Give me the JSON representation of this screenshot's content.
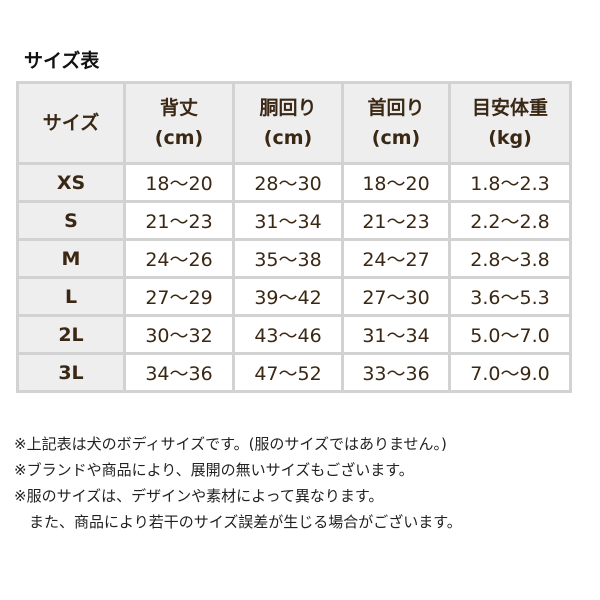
{
  "title": "サイズ表",
  "table": {
    "headers": [
      "サイズ",
      [
        "背丈",
        "(cm)"
      ],
      [
        "胴回り",
        "(cm)"
      ],
      [
        "首回り",
        "(cm)"
      ],
      [
        "目安体重",
        "(kg)"
      ]
    ],
    "rows": [
      [
        "XS",
        "18〜20",
        "28〜30",
        "18〜20",
        "1.8〜2.3"
      ],
      [
        "S",
        "21〜23",
        "31〜34",
        "21〜23",
        "2.2〜2.8"
      ],
      [
        "M",
        "24〜26",
        "35〜38",
        "24〜27",
        "2.8〜3.8"
      ],
      [
        "L",
        "27〜29",
        "39〜42",
        "27〜30",
        "3.6〜5.3"
      ],
      [
        "2L",
        "30〜32",
        "43〜46",
        "31〜34",
        "5.0〜7.0"
      ],
      [
        "3L",
        "34〜36",
        "47〜52",
        "33〜36",
        "7.0〜9.0"
      ]
    ]
  },
  "notes": [
    "※上記表は犬のボディサイズです。(服のサイズではありません。)",
    "※ブランドや商品により、展開の無いサイズもございます。",
    "※服のサイズは、デザインや素材によって異なります。",
    "　また、商品により若干のサイズ誤差が生じる場合がございます。"
  ]
}
